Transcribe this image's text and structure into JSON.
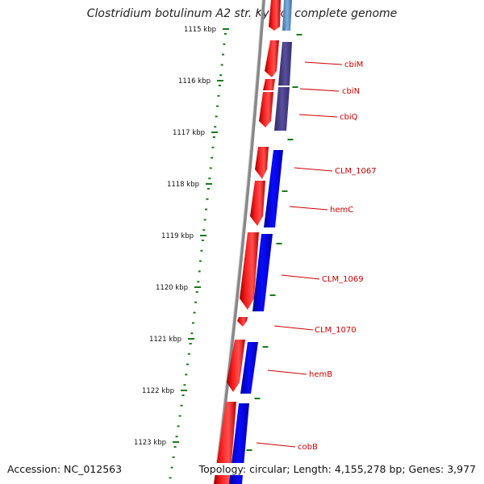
{
  "title": "Clostridium botulinum A2 str. Kyoto, complete genome",
  "footer": {
    "accession": "Accession: NC_012563",
    "topology": "Topology: circular; Length: 4,155,278 bp; Genes: 3,977"
  },
  "colors": {
    "forward_cds": "#ee0000",
    "reverse_cds": "#0000ee",
    "reverse_cds_muted": "#4a3f8a",
    "reverse_cds_top": "#5a8fc0",
    "backbone": "#888888",
    "ticks": "#1a7a1a",
    "label": "#cc0000"
  },
  "ruler": [
    {
      "label": "1115 kbp"
    },
    {
      "label": "1116 kbp"
    },
    {
      "label": "1117 kbp"
    },
    {
      "label": "1118 kbp"
    },
    {
      "label": "1119 kbp"
    },
    {
      "label": "1120 kbp"
    },
    {
      "label": "1121 kbp"
    },
    {
      "label": "1122 kbp"
    },
    {
      "label": "1123 kbp"
    }
  ],
  "gene_labels": [
    {
      "name": "cbiM"
    },
    {
      "name": "cbiN"
    },
    {
      "name": "cbiQ"
    },
    {
      "name": "CLM_1067"
    },
    {
      "name": "hemC"
    },
    {
      "name": "CLM_1069"
    },
    {
      "name": "CLM_1070"
    },
    {
      "name": "hemB"
    },
    {
      "name": "cobB"
    }
  ]
}
